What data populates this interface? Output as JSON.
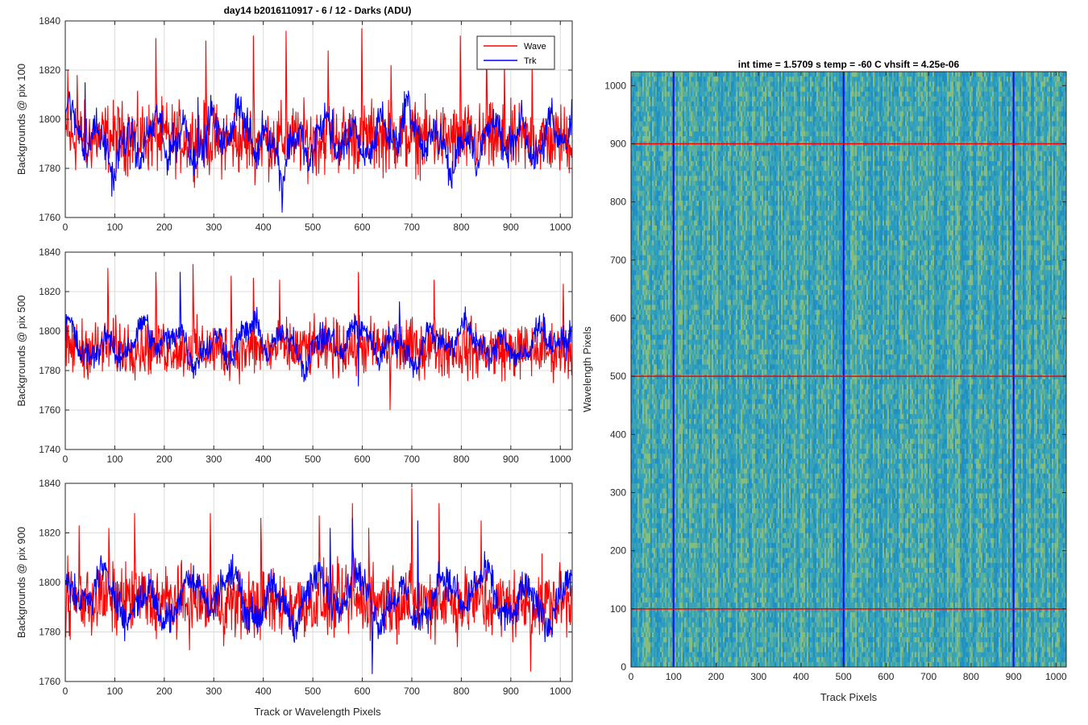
{
  "chart_data": [
    {
      "type": "line",
      "title": "day14 b2016110917 - 6 / 12 - Darks (ADU)",
      "xlabel": "",
      "ylabel": "Backgrounds @ pix 100",
      "xlim": [
        0,
        1024
      ],
      "ylim": [
        1760,
        1840
      ],
      "xticks": [
        0,
        100,
        200,
        300,
        400,
        500,
        600,
        700,
        800,
        900,
        1000
      ],
      "yticks": [
        1760,
        1780,
        1800,
        1820,
        1840
      ],
      "grid": true,
      "legend": "top-right",
      "series": [
        {
          "name": "Wave",
          "color": "#ff0000",
          "mean": 1792,
          "noise": 7,
          "waves": [
            [
              2,
              0,
              0.8
            ]
          ],
          "spikes": [
            [
              5,
              1820
            ],
            [
              24,
              1818
            ],
            [
              183,
              1833
            ],
            [
              284,
              1832
            ],
            [
              380,
              1834
            ],
            [
              446,
              1836
            ],
            [
              531,
              1828
            ],
            [
              599,
              1837
            ],
            [
              658,
              1822
            ],
            [
              798,
              1834
            ],
            [
              851,
              1830
            ],
            [
              887,
              1825
            ],
            [
              943,
              1823
            ]
          ]
        },
        {
          "name": "Trk",
          "color": "#0000ff",
          "mean": 1792,
          "noise": 3.5,
          "waves": [
            [
              18,
              0.4,
              7
            ],
            [
              6,
              1.3,
              4
            ],
            [
              3,
              2.1,
              3
            ],
            [
              39,
              0.2,
              3
            ]
          ],
          "spikes": [
            [
              40,
              1815
            ],
            [
              268,
              1809
            ],
            [
              438,
              1762
            ],
            [
              500,
              1778
            ],
            [
              540,
              1804
            ]
          ]
        }
      ]
    },
    {
      "type": "line",
      "xlabel": "",
      "ylabel": "Backgrounds @ pix 500",
      "xlim": [
        0,
        1024
      ],
      "ylim": [
        1740,
        1840
      ],
      "xticks": [
        0,
        100,
        200,
        300,
        400,
        500,
        600,
        700,
        800,
        900,
        1000
      ],
      "yticks": [
        1740,
        1760,
        1780,
        1800,
        1820,
        1840
      ],
      "grid": true,
      "series": [
        {
          "name": "Wave",
          "color": "#ff0000",
          "mean": 1791,
          "noise": 7,
          "waves": [
            [
              2,
              0,
              0.8
            ]
          ],
          "spikes": [
            [
              86,
              1832
            ],
            [
              183,
              1830
            ],
            [
              258,
              1834
            ],
            [
              335,
              1828
            ],
            [
              380,
              1827
            ],
            [
              433,
              1826
            ],
            [
              592,
              1830
            ],
            [
              656,
              1760
            ],
            [
              745,
              1826
            ],
            [
              1006,
              1824
            ]
          ]
        },
        {
          "name": "Trk",
          "color": "#0000ff",
          "mean": 1794,
          "noise": 3.5,
          "waves": [
            [
              14,
              0.9,
              6
            ],
            [
              5,
              2.4,
              4
            ],
            [
              27,
              0.1,
              3
            ]
          ],
          "spikes": [
            [
              232,
              1830
            ],
            [
              592,
              1772
            ],
            [
              675,
              1815
            ]
          ]
        }
      ]
    },
    {
      "type": "line",
      "xlabel": "Track or Wavelength Pixels",
      "ylabel": "Backgrounds @ pix 900",
      "xlim": [
        0,
        1024
      ],
      "ylim": [
        1760,
        1840
      ],
      "xticks": [
        0,
        100,
        200,
        300,
        400,
        500,
        600,
        700,
        800,
        900,
        1000
      ],
      "yticks": [
        1760,
        1780,
        1800,
        1820,
        1840
      ],
      "grid": true,
      "series": [
        {
          "name": "Wave",
          "color": "#ff0000",
          "mean": 1792,
          "noise": 7,
          "waves": [
            [
              2,
              0,
              0.8
            ]
          ],
          "spikes": [
            [
              28,
              1823
            ],
            [
              88,
              1822
            ],
            [
              140,
              1828
            ],
            [
              293,
              1828
            ],
            [
              395,
              1826
            ],
            [
              513,
              1827
            ],
            [
              580,
              1832
            ],
            [
              613,
              1822
            ],
            [
              700,
              1838
            ],
            [
              755,
              1832
            ],
            [
              840,
              1825
            ],
            [
              940,
              1764
            ]
          ]
        },
        {
          "name": "Trk",
          "color": "#0000ff",
          "mean": 1794,
          "noise": 3.5,
          "waves": [
            [
              12,
              2.0,
              7
            ],
            [
              4,
              0.5,
              4
            ],
            [
              30,
              1.0,
              2
            ]
          ],
          "spikes": [
            [
              535,
              1822
            ],
            [
              580,
              1826
            ],
            [
              620,
              1763
            ],
            [
              712,
              1825
            ]
          ]
        }
      ]
    },
    {
      "type": "heatmap",
      "title": "int time = 1.5709 s    temp = -60 C    vhsift = 4.25e-06",
      "xlabel": "Track Pixels",
      "ylabel": "Wavelength Pixels",
      "xlim": [
        0,
        1024
      ],
      "ylim": [
        0,
        1024
      ],
      "xticks": [
        0,
        100,
        200,
        300,
        400,
        500,
        600,
        700,
        800,
        900,
        1000
      ],
      "yticks": [
        0,
        100,
        200,
        300,
        400,
        500,
        600,
        700,
        800,
        900,
        1000
      ],
      "colormap": [
        "#1f8fc4",
        "#2a9bc0",
        "#3aa4b6",
        "#5bb09c",
        "#86bd7f"
      ],
      "vertical_markers": {
        "values": [
          100,
          500,
          900
        ],
        "color": "#0000ff"
      },
      "horizontal_markers": {
        "values": [
          100,
          500,
          900
        ],
        "color": "#ff0000"
      }
    }
  ]
}
